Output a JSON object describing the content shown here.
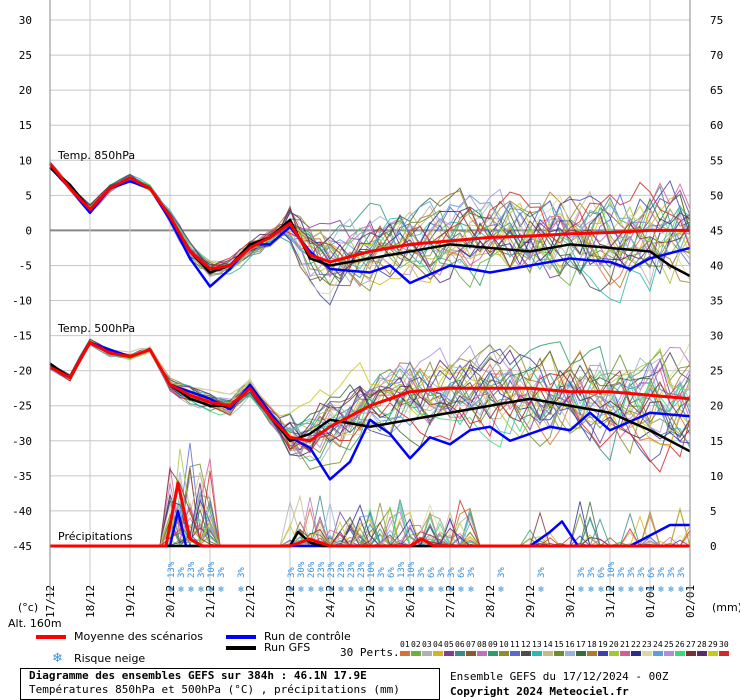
{
  "chart_data": {
    "type": "line",
    "left_axis": {
      "unit": "(°c)",
      "min": -45,
      "max": 30,
      "ticks": [
        30,
        25,
        20,
        15,
        10,
        5,
        0,
        -5,
        -10,
        -15,
        -20,
        -25,
        -30,
        -35,
        -40,
        -45
      ]
    },
    "right_axis": {
      "unit": "(mm)",
      "min": 0,
      "max": 75,
      "ticks": [
        75,
        70,
        65,
        60,
        55,
        50,
        45,
        40,
        35,
        30,
        25,
        20,
        15,
        10,
        5,
        0
      ]
    },
    "x_dates": [
      "17/12",
      "18/12",
      "19/12",
      "20/12",
      "21/12",
      "22/12",
      "23/12",
      "24/12",
      "25/12",
      "26/12",
      "27/12",
      "28/12",
      "29/12",
      "30/12",
      "31/12",
      "01/01",
      "02/01"
    ],
    "panel_labels": {
      "t850": "Temp. 850hPa",
      "t500": "Temp. 500hPa",
      "precip": "Précipitations"
    },
    "altitude": "Alt. 160m",
    "snow_risk": [
      {
        "day": 3.08,
        "pct": "13%"
      },
      {
        "day": 3.33,
        "pct": "3%"
      },
      {
        "day": 3.58,
        "pct": "23%"
      },
      {
        "day": 3.83,
        "pct": "3%"
      },
      {
        "day": 4.08,
        "pct": "10%"
      },
      {
        "day": 4.33,
        "pct": "3%"
      },
      {
        "day": 4.83,
        "pct": "3%"
      },
      {
        "day": 6.08,
        "pct": "3%"
      },
      {
        "day": 6.33,
        "pct": "30%"
      },
      {
        "day": 6.58,
        "pct": "26%"
      },
      {
        "day": 6.83,
        "pct": "23%"
      },
      {
        "day": 7.08,
        "pct": "23%"
      },
      {
        "day": 7.33,
        "pct": "23%"
      },
      {
        "day": 7.58,
        "pct": "23%"
      },
      {
        "day": 7.83,
        "pct": "23%"
      },
      {
        "day": 8.08,
        "pct": "10%"
      },
      {
        "day": 8.33,
        "pct": "3%"
      },
      {
        "day": 8.58,
        "pct": "6%"
      },
      {
        "day": 8.83,
        "pct": "13%"
      },
      {
        "day": 9.08,
        "pct": "10%"
      },
      {
        "day": 9.33,
        "pct": "3%"
      },
      {
        "day": 9.58,
        "pct": "6%"
      },
      {
        "day": 9.83,
        "pct": "3%"
      },
      {
        "day": 10.08,
        "pct": "3%"
      },
      {
        "day": 10.33,
        "pct": "6%"
      },
      {
        "day": 10.58,
        "pct": "3%"
      },
      {
        "day": 11.33,
        "pct": "3%"
      },
      {
        "day": 12.33,
        "pct": "3%"
      },
      {
        "day": 13.33,
        "pct": "3%"
      },
      {
        "day": 13.58,
        "pct": "3%"
      },
      {
        "day": 13.83,
        "pct": "6%"
      },
      {
        "day": 14.08,
        "pct": "10%"
      },
      {
        "day": 14.33,
        "pct": "3%"
      },
      {
        "day": 14.58,
        "pct": "3%"
      },
      {
        "day": 14.83,
        "pct": "3%"
      },
      {
        "day": 15.08,
        "pct": "6%"
      },
      {
        "day": 15.33,
        "pct": "3%"
      },
      {
        "day": 15.58,
        "pct": "3%"
      },
      {
        "day": 15.83,
        "pct": "3%"
      }
    ],
    "series": [
      {
        "name": "Moyenne des scénarios",
        "color": "#ff0000",
        "t850": [
          [
            0,
            9.5
          ],
          [
            0.5,
            6
          ],
          [
            1,
            3
          ],
          [
            1.5,
            6
          ],
          [
            2,
            7.5
          ],
          [
            2.5,
            6
          ],
          [
            3,
            2
          ],
          [
            3.5,
            -3
          ],
          [
            4,
            -5.5
          ],
          [
            4.5,
            -5
          ],
          [
            5,
            -2.5
          ],
          [
            5.5,
            -1
          ],
          [
            6,
            1
          ],
          [
            6.5,
            -3.5
          ],
          [
            7,
            -4.5
          ],
          [
            8,
            -3
          ],
          [
            9,
            -2
          ],
          [
            10,
            -1.5
          ],
          [
            11,
            -1
          ],
          [
            12,
            -0.8
          ],
          [
            13,
            -0.5
          ],
          [
            14,
            -0.3
          ],
          [
            15,
            0
          ],
          [
            16,
            0
          ]
        ],
        "t500": [
          [
            0,
            -19.5
          ],
          [
            0.5,
            -21
          ],
          [
            1,
            -16
          ],
          [
            1.5,
            -17.5
          ],
          [
            2,
            -18
          ],
          [
            2.5,
            -17
          ],
          [
            3,
            -22
          ],
          [
            3.5,
            -23.5
          ],
          [
            4,
            -24.5
          ],
          [
            4.5,
            -25
          ],
          [
            5,
            -22.5
          ],
          [
            5.5,
            -26.5
          ],
          [
            6,
            -29.5
          ],
          [
            6.5,
            -30
          ],
          [
            7,
            -28
          ],
          [
            8,
            -25
          ],
          [
            9,
            -23
          ],
          [
            10,
            -22.5
          ],
          [
            11,
            -22.5
          ],
          [
            12,
            -22.5
          ],
          [
            13,
            -23
          ],
          [
            14,
            -23
          ],
          [
            15,
            -23.5
          ],
          [
            16,
            -24
          ]
        ],
        "precip": [
          [
            0,
            0
          ],
          [
            2.9,
            0
          ],
          [
            3.2,
            9
          ],
          [
            3.5,
            1
          ],
          [
            3.8,
            0
          ],
          [
            6,
            0
          ],
          [
            6.5,
            1
          ],
          [
            7,
            0
          ],
          [
            9,
            0
          ],
          [
            9.3,
            1
          ],
          [
            9.6,
            0
          ],
          [
            16,
            0
          ]
        ]
      },
      {
        "name": "Run de contrôle",
        "color": "#0000ff",
        "t850": [
          [
            0,
            9
          ],
          [
            0.5,
            6
          ],
          [
            1,
            2.5
          ],
          [
            1.5,
            6
          ],
          [
            2,
            7
          ],
          [
            2.5,
            6
          ],
          [
            3,
            1.5
          ],
          [
            3.5,
            -4
          ],
          [
            4,
            -8
          ],
          [
            4.5,
            -5.5
          ],
          [
            5,
            -2
          ],
          [
            5.5,
            -2
          ],
          [
            6,
            0.5
          ],
          [
            6.5,
            -3
          ],
          [
            7,
            -5.5
          ],
          [
            8,
            -6
          ],
          [
            8.5,
            -5
          ],
          [
            9,
            -7.5
          ],
          [
            10,
            -5
          ],
          [
            11,
            -6
          ],
          [
            12,
            -5
          ],
          [
            13,
            -4
          ],
          [
            14,
            -4.5
          ],
          [
            14.5,
            -5.5
          ],
          [
            15,
            -4
          ],
          [
            16,
            -2.5
          ]
        ],
        "t500": [
          [
            0,
            -19
          ],
          [
            0.5,
            -21
          ],
          [
            1,
            -16
          ],
          [
            1.5,
            -17
          ],
          [
            2,
            -18
          ],
          [
            2.5,
            -17
          ],
          [
            3,
            -22
          ],
          [
            3.5,
            -23
          ],
          [
            4,
            -24
          ],
          [
            4.5,
            -25.5
          ],
          [
            5,
            -22
          ],
          [
            5.5,
            -26
          ],
          [
            6,
            -29.5
          ],
          [
            6.5,
            -31
          ],
          [
            7,
            -35.5
          ],
          [
            7.5,
            -33
          ],
          [
            8,
            -27
          ],
          [
            8.5,
            -29
          ],
          [
            9,
            -32.5
          ],
          [
            9.5,
            -29.5
          ],
          [
            10,
            -30.5
          ],
          [
            10.5,
            -28.5
          ],
          [
            11,
            -28
          ],
          [
            11.5,
            -30
          ],
          [
            12,
            -29
          ],
          [
            12.5,
            -28
          ],
          [
            13,
            -28.5
          ],
          [
            13.5,
            -26
          ],
          [
            14,
            -28.5
          ],
          [
            15,
            -26
          ],
          [
            16,
            -26.5
          ]
        ],
        "precip": [
          [
            0,
            0
          ],
          [
            3,
            0
          ],
          [
            3.2,
            5
          ],
          [
            3.4,
            0
          ],
          [
            12,
            0
          ],
          [
            12.5,
            2
          ],
          [
            12.8,
            3.5
          ],
          [
            13.2,
            0
          ],
          [
            14.5,
            0
          ],
          [
            15,
            1.5
          ],
          [
            15.5,
            3
          ],
          [
            16,
            3
          ]
        ]
      },
      {
        "name": "Run GFS",
        "color": "#000000",
        "t850": [
          [
            0,
            9
          ],
          [
            0.5,
            6.5
          ],
          [
            1,
            3
          ],
          [
            1.5,
            6
          ],
          [
            2,
            7.5
          ],
          [
            2.5,
            6
          ],
          [
            3,
            2
          ],
          [
            3.5,
            -3
          ],
          [
            4,
            -6
          ],
          [
            4.5,
            -5
          ],
          [
            5,
            -2
          ],
          [
            5.5,
            -1
          ],
          [
            6,
            1.5
          ],
          [
            6.5,
            -4
          ],
          [
            7,
            -5
          ],
          [
            8,
            -4
          ],
          [
            9,
            -3
          ],
          [
            10,
            -2
          ],
          [
            11,
            -2.5
          ],
          [
            12,
            -3
          ],
          [
            13,
            -2
          ],
          [
            14,
            -2.5
          ],
          [
            15,
            -3
          ],
          [
            15.5,
            -5
          ],
          [
            16,
            -6.5
          ]
        ],
        "t500": [
          [
            0,
            -19
          ],
          [
            0.5,
            -21
          ],
          [
            1,
            -16
          ],
          [
            1.5,
            -17.5
          ],
          [
            2,
            -18
          ],
          [
            2.5,
            -17
          ],
          [
            3,
            -22
          ],
          [
            3.5,
            -24
          ],
          [
            4,
            -25
          ],
          [
            4.5,
            -25
          ],
          [
            5,
            -22.5
          ],
          [
            5.5,
            -26.5
          ],
          [
            6,
            -30
          ],
          [
            6.5,
            -29
          ],
          [
            7,
            -27
          ],
          [
            8,
            -28
          ],
          [
            9,
            -27
          ],
          [
            10,
            -26
          ],
          [
            11,
            -25
          ],
          [
            12,
            -24
          ],
          [
            13,
            -25
          ],
          [
            14,
            -26
          ],
          [
            15,
            -28.5
          ],
          [
            16,
            -31.5
          ]
        ],
        "precip": [
          [
            0,
            0
          ],
          [
            6,
            0
          ],
          [
            6.2,
            2
          ],
          [
            6.5,
            0.5
          ],
          [
            6.8,
            0
          ],
          [
            16,
            0
          ]
        ]
      }
    ],
    "members_count_label": "30 Perts.",
    "member_numbers": [
      "01",
      "02",
      "03",
      "04",
      "05",
      "06",
      "07",
      "08",
      "09",
      "10",
      "11",
      "12",
      "13",
      "14",
      "15",
      "16",
      "17",
      "18",
      "19",
      "20",
      "21",
      "22",
      "23",
      "24",
      "25",
      "26",
      "27",
      "28",
      "29",
      "30"
    ],
    "member_colors": [
      "#d96f3a",
      "#6cb03b",
      "#b0b0b0",
      "#d9b21f",
      "#7d3f98",
      "#3a8a8a",
      "#8c5a2b",
      "#c070c0",
      "#2f9c6c",
      "#8e8e2e",
      "#5a6ad1",
      "#4c4c4c",
      "#2cb9b0",
      "#c9b98b",
      "#6d8f2a",
      "#9ab1dd",
      "#3d6a3d",
      "#b07a2a",
      "#3f3fb0",
      "#a0c838",
      "#d65ca0",
      "#2b2b8c",
      "#d9d9a0",
      "#5ca0d6",
      "#b08fd9",
      "#3cd97b",
      "#7a3030",
      "#5a2b6a",
      "#c8c820",
      "#d22828"
    ]
  },
  "legend": {
    "mean": "Moyenne des scénarios",
    "control": "Run de contrôle",
    "gfs": "Run GFS",
    "snow": "Risque neige",
    "snow_icon": "snowflake-icon",
    "ensemble": "Ensemble GEFS du 17/12/2024 - 00Z",
    "copyright": "Copyright 2024 Meteociel.fr"
  },
  "info_box": {
    "line1": "Diagramme des ensembles GEFS sur 384h : 46.1N 17.9E",
    "line2": "Températures 850hPa et 500hPa (°C) , précipitations (mm)"
  }
}
